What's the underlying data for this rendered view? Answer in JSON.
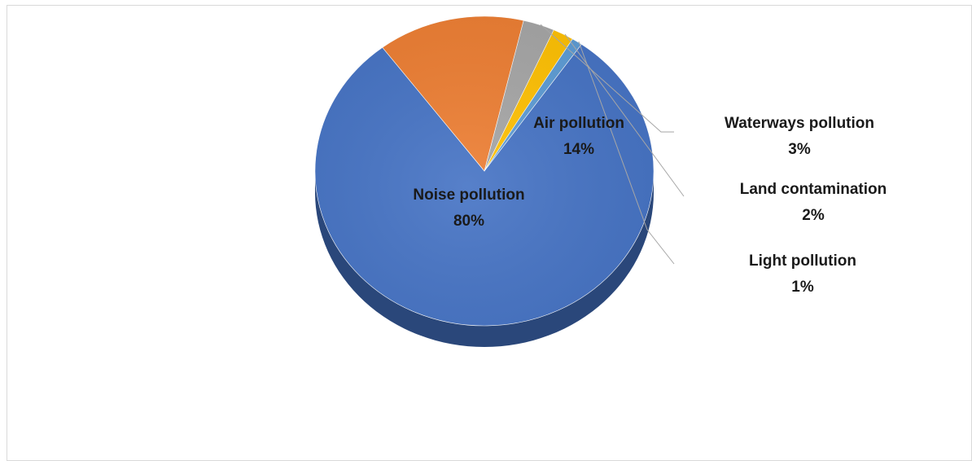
{
  "chart_data": {
    "type": "pie",
    "style": "3d",
    "slices": [
      {
        "name": "Noise pollution",
        "label": "80%",
        "value": 80,
        "color": "#4472C4"
      },
      {
        "name": "Air pollution",
        "label": "14%",
        "value": 14,
        "color": "#ED7D31"
      },
      {
        "name": "Waterways pollution",
        "label": "3%",
        "value": 3,
        "color": "#A5A5A5"
      },
      {
        "name": "Land contamination",
        "label": "2%",
        "value": 2,
        "color": "#FFC000"
      },
      {
        "name": "Light pollution",
        "label": "1%",
        "value": 1,
        "color": "#5B9BD5"
      }
    ]
  }
}
